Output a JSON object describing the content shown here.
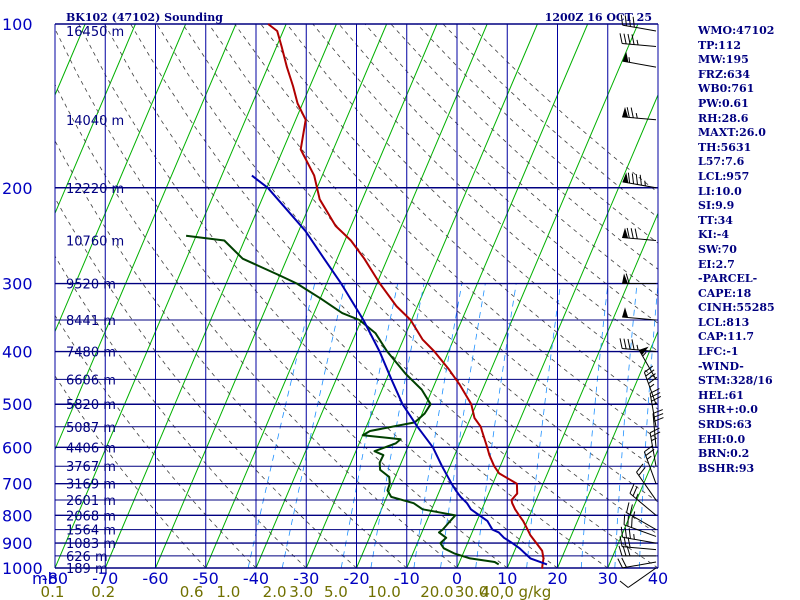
{
  "chart_data": {
    "type": "skew-t log-p sounding",
    "title": "BK102 (47102) Sounding",
    "time": "1200Z 16 OCT 25",
    "ylabel": "mb",
    "pressure_ticks": [
      100,
      200,
      300,
      400,
      500,
      600,
      700,
      800,
      900,
      1000
    ],
    "temp_ticks": [
      -80,
      -70,
      -60,
      -50,
      -40,
      -30,
      -20,
      -10,
      0,
      10,
      20,
      30,
      40
    ],
    "xlim": [
      -80,
      40
    ],
    "ylim": [
      1000,
      100
    ],
    "skew_deg_per_log_p": 46.0,
    "height_labels": [
      {
        "p": 103,
        "label": "16450 m"
      },
      {
        "p": 150,
        "label": "14040 m"
      },
      {
        "p": 200,
        "label": "12220 m"
      },
      {
        "p": 250,
        "label": "10760 m"
      },
      {
        "p": 300,
        "label": "9520 m"
      },
      {
        "p": 350,
        "label": "8441 m"
      },
      {
        "p": 400,
        "label": "7480 m"
      },
      {
        "p": 450,
        "label": "6606 m"
      },
      {
        "p": 500,
        "label": "5820 m"
      },
      {
        "p": 550,
        "label": "5087 m"
      },
      {
        "p": 600,
        "label": "4406 m"
      },
      {
        "p": 650,
        "label": "3767 m"
      },
      {
        "p": 700,
        "label": "3169 m"
      },
      {
        "p": 750,
        "label": "2601 m"
      },
      {
        "p": 800,
        "label": "2068 m"
      },
      {
        "p": 850,
        "label": "1564 m"
      },
      {
        "p": 900,
        "label": "1083 m"
      },
      {
        "p": 950,
        "label": "626 m"
      },
      {
        "p": 1000,
        "label": "189 m"
      }
    ],
    "mixing_ratio_labels": [
      {
        "value": "0.1",
        "temp": -80.5
      },
      {
        "value": "0.2",
        "temp": -70.4
      },
      {
        "value": "0.6",
        "temp": -52.8
      },
      {
        "value": "1.0",
        "temp": -45.5
      },
      {
        "value": "2.0",
        "temp": -36.3
      },
      {
        "value": "3.0",
        "temp": -31.0
      },
      {
        "value": "5.0",
        "temp": -24.1
      },
      {
        "value": "10.0",
        "temp": -14.5
      },
      {
        "value": "20.0",
        "temp": -4.0
      },
      {
        "value": "30.0",
        "temp": 2.9
      },
      {
        "value": "40,0",
        "temp": 8.0
      },
      {
        "value": "g/kg",
        "temp": 15.5
      }
    ],
    "series": [
      {
        "name": "temperature",
        "points": [
          [
            1003,
            17.0
          ],
          [
            990,
            16.8
          ],
          [
            960,
            16.4
          ],
          [
            930,
            15.5
          ],
          [
            900,
            13.7
          ],
          [
            870,
            11.8
          ],
          [
            850,
            10.8
          ],
          [
            820,
            9.2
          ],
          [
            800,
            7.9
          ],
          [
            780,
            6.6
          ],
          [
            760,
            5.5
          ],
          [
            750,
            5.1
          ],
          [
            730,
            5.7
          ],
          [
            700,
            4.8
          ],
          [
            670,
            0.4
          ],
          [
            650,
            -1.2
          ],
          [
            620,
            -3.1
          ],
          [
            600,
            -4.2
          ],
          [
            560,
            -6.6
          ],
          [
            550,
            -7.2
          ],
          [
            530,
            -9.2
          ],
          [
            500,
            -11.0
          ],
          [
            460,
            -15.0
          ],
          [
            430,
            -18.6
          ],
          [
            400,
            -22.8
          ],
          [
            380,
            -26.2
          ],
          [
            350,
            -30.2
          ],
          [
            330,
            -34.2
          ],
          [
            300,
            -39.4
          ],
          [
            270,
            -44.6
          ],
          [
            250,
            -48.8
          ],
          [
            235,
            -53.1
          ],
          [
            210,
            -58.5
          ],
          [
            190,
            -61.6
          ],
          [
            170,
            -66.5
          ],
          [
            150,
            -68.0
          ],
          [
            140,
            -71.0
          ],
          [
            130,
            -73.4
          ],
          [
            120,
            -76.2
          ],
          [
            110,
            -79.0
          ],
          [
            103,
            -81.2
          ],
          [
            100,
            -83.6
          ]
        ]
      },
      {
        "name": "dewpoint",
        "points": [
          [
            985,
            8.0
          ],
          [
            975,
            7.0
          ],
          [
            960,
            1.8
          ],
          [
            940,
            -1.8
          ],
          [
            920,
            -4.3
          ],
          [
            900,
            -5.4
          ],
          [
            880,
            -4.7
          ],
          [
            860,
            -6.6
          ],
          [
            850,
            -6.1
          ],
          [
            830,
            -5.6
          ],
          [
            800,
            -4.8
          ],
          [
            780,
            -11.8
          ],
          [
            760,
            -14.1
          ],
          [
            740,
            -19.1
          ],
          [
            720,
            -20.4
          ],
          [
            700,
            -20.5
          ],
          [
            680,
            -21.2
          ],
          [
            660,
            -23.6
          ],
          [
            640,
            -24.3
          ],
          [
            620,
            -24.2
          ],
          [
            610,
            -26.3
          ],
          [
            590,
            -22.7
          ],
          [
            580,
            -22.1
          ],
          [
            570,
            -30.0
          ],
          [
            560,
            -28.9
          ],
          [
            540,
            -20.7
          ],
          [
            520,
            -19.5
          ],
          [
            500,
            -19.1
          ],
          [
            470,
            -22.1
          ],
          [
            440,
            -26.6
          ],
          [
            400,
            -32.2
          ],
          [
            370,
            -36.1
          ],
          [
            350,
            -40.4
          ],
          [
            340,
            -44.4
          ],
          [
            320,
            -49.8
          ],
          [
            300,
            -55.9
          ],
          [
            290,
            -60.0
          ],
          [
            270,
            -68.8
          ],
          [
            250,
            -74.0
          ],
          [
            245,
            -82.0
          ]
        ]
      },
      {
        "name": "parcel",
        "points": [
          [
            985,
            17.6
          ],
          [
            960,
            13.8
          ],
          [
            940,
            12.3
          ],
          [
            920,
            10.8
          ],
          [
            900,
            8.9
          ],
          [
            880,
            6.8
          ],
          [
            860,
            5.3
          ],
          [
            850,
            3.8
          ],
          [
            820,
            2.1
          ],
          [
            800,
            0.0
          ],
          [
            780,
            -2.2
          ],
          [
            760,
            -3.5
          ],
          [
            740,
            -5.3
          ],
          [
            720,
            -6.8
          ],
          [
            700,
            -8.2
          ],
          [
            650,
            -11.6
          ],
          [
            600,
            -15.0
          ],
          [
            550,
            -19.8
          ],
          [
            500,
            -24.7
          ],
          [
            450,
            -29.0
          ],
          [
            400,
            -33.7
          ],
          [
            350,
            -39.6
          ],
          [
            300,
            -47.1
          ],
          [
            270,
            -52.6
          ],
          [
            240,
            -58.7
          ],
          [
            220,
            -64.0
          ],
          [
            200,
            -69.8
          ],
          [
            190,
            -74.0
          ]
        ]
      }
    ],
    "wind_barbs": [
      {
        "p": 1000,
        "dir": 235,
        "spd": 10
      },
      {
        "p": 975,
        "dir": 260,
        "spd": 20
      },
      {
        "p": 950,
        "dir": 270,
        "spd": 30
      },
      {
        "p": 925,
        "dir": 275,
        "spd": 30
      },
      {
        "p": 900,
        "dir": 280,
        "spd": 35
      },
      {
        "p": 875,
        "dir": 290,
        "spd": 30
      },
      {
        "p": 850,
        "dir": 300,
        "spd": 25
      },
      {
        "p": 800,
        "dir": 310,
        "spd": 25
      },
      {
        "p": 750,
        "dir": 325,
        "spd": 20
      },
      {
        "p": 700,
        "dir": 340,
        "spd": 25
      },
      {
        "p": 650,
        "dir": 350,
        "spd": 25
      },
      {
        "p": 600,
        "dir": 355,
        "spd": 30
      },
      {
        "p": 550,
        "dir": 350,
        "spd": 35
      },
      {
        "p": 500,
        "dir": 340,
        "spd": 45
      },
      {
        "p": 450,
        "dir": 330,
        "spd": 55
      },
      {
        "p": 400,
        "dir": 275,
        "spd": 45
      },
      {
        "p": 350,
        "dir": 275,
        "spd": 50
      },
      {
        "p": 300,
        "dir": 270,
        "spd": 60
      },
      {
        "p": 250,
        "dir": 275,
        "spd": 80
      },
      {
        "p": 200,
        "dir": 280,
        "spd": 95
      },
      {
        "p": 150,
        "dir": 275,
        "spd": 75
      },
      {
        "p": 120,
        "dir": 280,
        "spd": 55
      },
      {
        "p": 110,
        "dir": 275,
        "spd": 45
      },
      {
        "p": 103,
        "dir": 280,
        "spd": 40
      }
    ]
  },
  "stats": [
    "WMO:47102",
    "TP:112",
    "MW:195",
    "FRZ:634",
    "WB0:761",
    "PW:0.61",
    "RH:28.6",
    "MAXT:26.0",
    "TH:5631",
    "L57:7.6",
    "LCL:957",
    "LI:10.0",
    "SI:9.9",
    "TT:34",
    "KI:-4",
    "SW:70",
    "EI:2.7",
    "-PARCEL-",
    "CAPE:18",
    "CINH:55285",
    "LCL:813",
    "CAP:11.7",
    "LFC:-1",
    "-WIND-",
    "STM:328/16",
    "HEL:61",
    "SHR+:0.0",
    "SRDS:63",
    "EHI:0.0",
    "BRN:0.2",
    "BSHR:93"
  ],
  "colors": {
    "grid": "#0000a0",
    "isobar": "#000080",
    "isotherm": "#00b000",
    "dry_adiabat": "#404040",
    "mixing_ratio": "#1e90ff",
    "temperature": "#b00000",
    "dewpoint": "#004000",
    "parcel": "#0000b0",
    "axis_text": "#0000c0",
    "mixing_text": "#707000",
    "barb": "#000000",
    "title": "#000080"
  }
}
